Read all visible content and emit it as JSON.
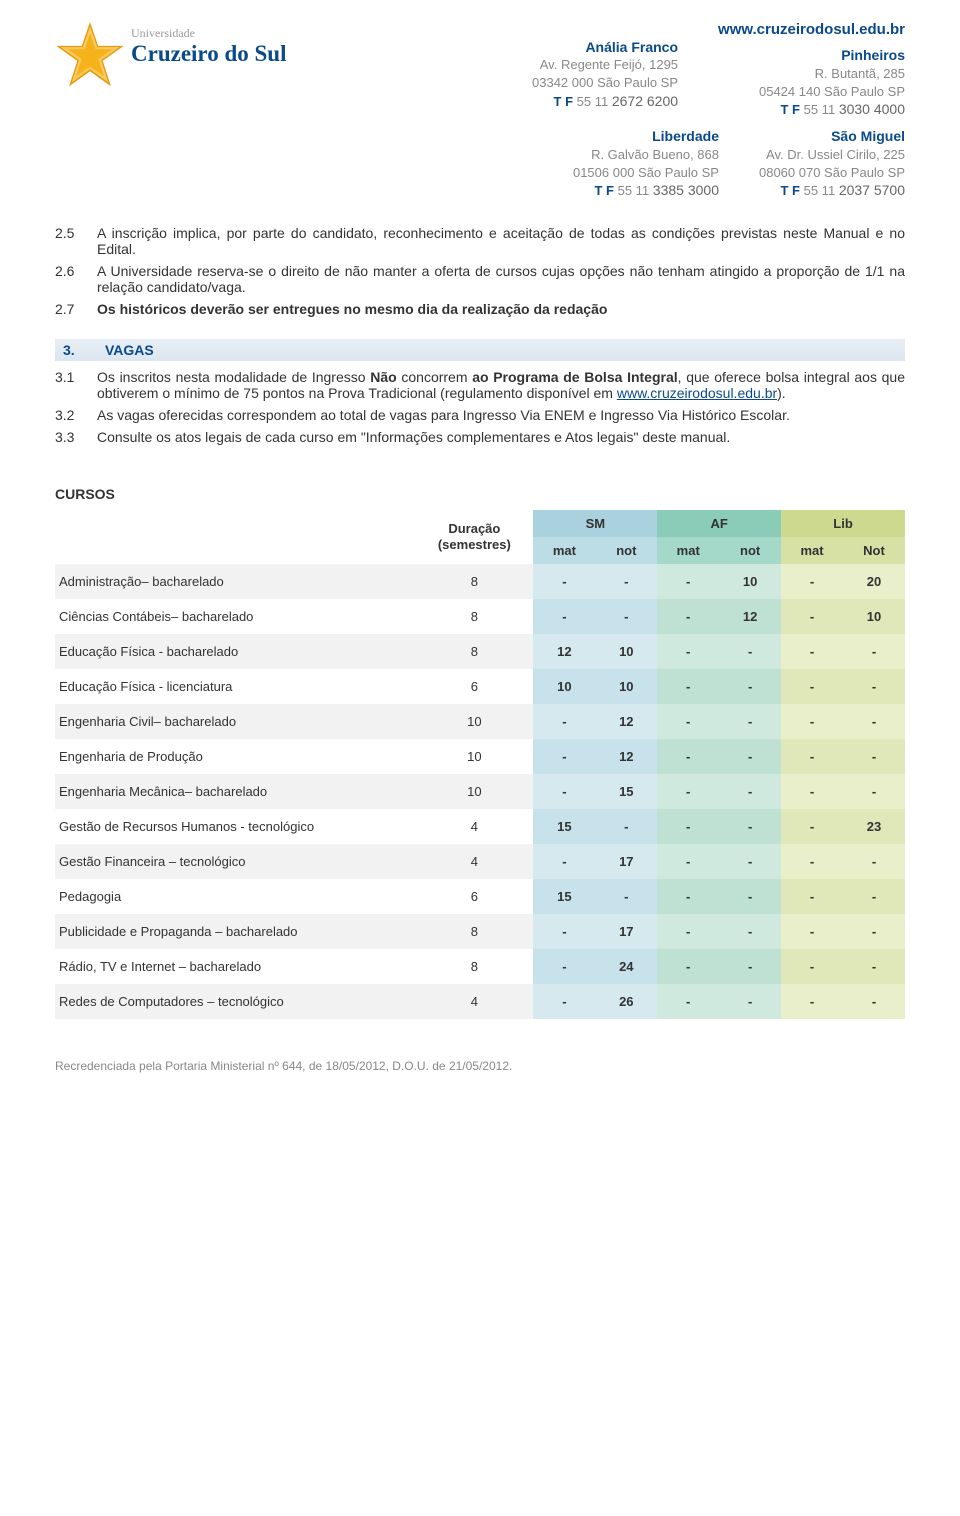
{
  "header": {
    "website": "www.cruzeirodosul.edu.br",
    "logo_top": "Universidade",
    "logo_name": "Cruzeiro do Sul",
    "campuses_row1": [
      {
        "name": "Anália Franco",
        "addr1": "Av. Regente Feijó, 1295",
        "addr2": "03342 000 São Paulo SP",
        "phone_pre": "55 11",
        "phone_num": "2672 6200"
      },
      {
        "name": "Pinheiros",
        "addr1": "R. Butantã, 285",
        "addr2": "05424 140 São Paulo SP",
        "phone_pre": "55 11",
        "phone_num": "3030 4000"
      }
    ],
    "campuses_row2": [
      {
        "name": "Liberdade",
        "addr1": "R. Galvão Bueno, 868",
        "addr2": "01506 000 São Paulo SP",
        "phone_pre": "55 11",
        "phone_num": "3385 3000"
      },
      {
        "name": "São Miguel",
        "addr1": "Av. Dr. Ussiel Cirilo, 225",
        "addr2": "08060 070 São Paulo SP",
        "phone_pre": "55 11",
        "phone_num": "2037 5700"
      }
    ],
    "tf_label": "T F"
  },
  "items_2": [
    {
      "n": "2.5",
      "t": "A inscrição implica, por parte do candidato, reconhecimento e aceitação de todas as condições previstas neste Manual e no Edital."
    },
    {
      "n": "2.6",
      "t": "A Universidade reserva-se o direito de não manter a oferta de cursos cujas opções não tenham atingido a proporção de 1/1 na relação candidato/vaga."
    },
    {
      "n": "2.7",
      "t": "Os históricos deverão ser entregues no mesmo dia da realização da redação",
      "bold": true
    }
  ],
  "section3": {
    "n": "3.",
    "title": "VAGAS"
  },
  "items_3": [
    {
      "n": "3.1",
      "parts": [
        {
          "text": "Os inscritos nesta modalidade de Ingresso "
        },
        {
          "text": "Não",
          "bold": true
        },
        {
          "text": " concorrem "
        },
        {
          "text": "ao Programa de Bolsa Integral",
          "bold": true
        },
        {
          "text": ", que oferece bolsa integral aos que obtiverem o mínimo de 75 pontos na Prova Tradicional (regulamento disponível em "
        },
        {
          "text": "www.cruzeirodosul.edu.br",
          "link": true
        },
        {
          "text": ")."
        }
      ]
    },
    {
      "n": "3.2",
      "t": "As vagas oferecidas correspondem ao total de vagas para Ingresso Via ENEM e Ingresso Via Histórico Escolar."
    },
    {
      "n": "3.3",
      "t": "Consulte os atos legais de cada curso em \"Informações complementares e Atos legais\" deste manual."
    }
  ],
  "table": {
    "cursos_label": "CURSOS",
    "dur_label_l1": "Duração",
    "dur_label_l2": "(semestres)",
    "groups": [
      {
        "label": "SM",
        "bg_head": "#a9d2de",
        "bg_sub": "#bcdde6",
        "cell_even": "#d5e9ef",
        "cell_odd": "#c7e2ea"
      },
      {
        "label": "AF",
        "bg_head": "#8bccb9",
        "bg_sub": "#a4d8c9",
        "cell_even": "#cfe9df",
        "cell_odd": "#bee1d4"
      },
      {
        "label": "Lib",
        "bg_head": "#cdd98f",
        "bg_sub": "#d7e0a5",
        "cell_even": "#e9eecb",
        "cell_odd": "#e0e7b9"
      }
    ],
    "sub_cols": [
      "mat",
      "not",
      "mat",
      "not",
      "mat",
      "Not"
    ],
    "rows": [
      {
        "name": "Administração– bacharelado",
        "dur": "8",
        "cells": [
          "-",
          "-",
          "-",
          "10",
          "-",
          "20"
        ]
      },
      {
        "name": "Ciências Contábeis– bacharelado",
        "dur": "8",
        "cells": [
          "-",
          "-",
          "-",
          "12",
          "-",
          "10"
        ]
      },
      {
        "name": "Educação Física - bacharelado",
        "dur": "8",
        "cells": [
          "12",
          "10",
          "-",
          "-",
          "-",
          "-"
        ]
      },
      {
        "name": "Educação Física - licenciatura",
        "dur": "6",
        "cells": [
          "10",
          "10",
          "-",
          "-",
          "-",
          "-"
        ]
      },
      {
        "name": "Engenharia Civil– bacharelado",
        "dur": "10",
        "cells": [
          "-",
          "12",
          "-",
          "-",
          "-",
          "-"
        ]
      },
      {
        "name": "Engenharia de Produção",
        "dur": "10",
        "cells": [
          "-",
          "12",
          "-",
          "-",
          "-",
          "-"
        ]
      },
      {
        "name": "Engenharia Mecânica– bacharelado",
        "dur": "10",
        "cells": [
          "-",
          "15",
          "-",
          "-",
          "-",
          "-"
        ]
      },
      {
        "name": "Gestão de Recursos Humanos - tecnológico",
        "dur": "4",
        "cells": [
          "15",
          "-",
          "-",
          "-",
          "-",
          "23"
        ]
      },
      {
        "name": "Gestão Financeira – tecnológico",
        "dur": "4",
        "cells": [
          "-",
          "17",
          "-",
          "-",
          "-",
          "-"
        ]
      },
      {
        "name": "Pedagogia",
        "dur": "6",
        "cells": [
          "15",
          "-",
          "-",
          "-",
          "-",
          "-"
        ]
      },
      {
        "name": "Publicidade e Propaganda – bacharelado",
        "dur": "8",
        "cells": [
          "-",
          "17",
          "-",
          "-",
          "-",
          "-"
        ]
      },
      {
        "name": "Rádio, TV e Internet – bacharelado",
        "dur": "8",
        "cells": [
          "-",
          "24",
          "-",
          "-",
          "-",
          "-"
        ]
      },
      {
        "name": "Redes de Computadores – tecnológico",
        "dur": "4",
        "cells": [
          "-",
          "26",
          "-",
          "-",
          "-",
          "-"
        ]
      }
    ]
  },
  "footer": "Recredenciada pela Portaria Ministerial nº 644, de 18/05/2012, D.O.U. de 21/05/2012."
}
